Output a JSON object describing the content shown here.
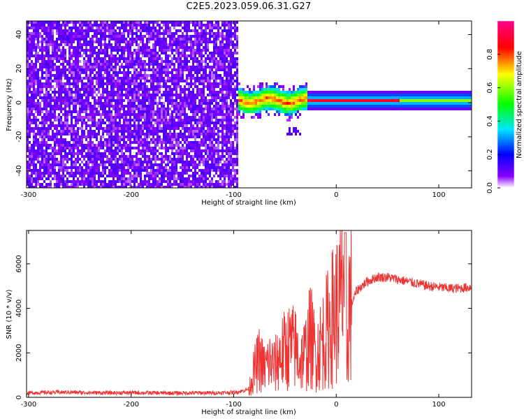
{
  "figure_title": "C2E5.2023.059.06.31.G27",
  "chart_data": [
    {
      "type": "heatmap",
      "xlabel": "Height of straight line (km)",
      "ylabel": "Frequency (Hz)",
      "xlim": [
        -302,
        132
      ],
      "ylim": [
        -50,
        48
      ],
      "xticks": [
        -300,
        -200,
        -100,
        0,
        100
      ],
      "xtick_labels": [
        "-300",
        "-200",
        "-100",
        "0",
        "100"
      ],
      "yticks": [
        -40,
        -20,
        0,
        20,
        40
      ],
      "ytick_labels": [
        "-40",
        "-20",
        "0",
        "20",
        "40"
      ],
      "colorbar": {
        "label": "Normalized spectral amplitude",
        "range": [
          0,
          1
        ],
        "ticks": [
          0,
          0.2,
          0.4,
          0.6,
          0.8
        ],
        "tick_labels": [
          "0.0",
          "0.2",
          "0.4",
          "0.6",
          "0.8"
        ],
        "colormap": [
          "#ffffff",
          "#6600ff",
          "#0000ff",
          "#00ffff",
          "#00ff00",
          "#ffff00",
          "#ff0000",
          "#ff0080"
        ]
      },
      "regions": [
        {
          "x_range": [
            -300,
            -97
          ],
          "freq_range": [
            -50,
            48
          ],
          "amplitude_range": [
            0.0,
            0.15
          ]
        },
        {
          "x_range": [
            -97,
            -30
          ],
          "center_freq": 2,
          "halfwidth": 6,
          "amplitude_range": [
            0.2,
            0.85
          ]
        },
        {
          "x_range": [
            -30,
            130
          ],
          "center_freq": 2,
          "halfwidth": 4,
          "peak_amplitude": 0.9
        }
      ]
    },
    {
      "type": "line",
      "xlabel": "Height of straight line (km)",
      "ylabel": "SNR (10 * v/v)",
      "xlim": [
        -302,
        132
      ],
      "ylim": [
        0,
        7500
      ],
      "xticks": [
        -300,
        -200,
        -100,
        0,
        100
      ],
      "xtick_labels": [
        "-300",
        "-200",
        "-100",
        "0",
        "100"
      ],
      "yticks": [
        0,
        2000,
        4000,
        6000
      ],
      "ytick_labels": [
        "0",
        "2000",
        "4000",
        "6000"
      ],
      "color": "#ee3333",
      "series": [
        {
          "x": [
            -302,
            -280,
            -260,
            -240,
            -220,
            -200,
            -180,
            -160,
            -140,
            -120,
            -100,
            -90,
            -85,
            -80,
            -75,
            -70,
            -65,
            -60,
            -55,
            -50,
            -45,
            -40,
            -35,
            -30,
            -25,
            -20,
            -15,
            -10,
            -5,
            0,
            5,
            8,
            10,
            12,
            15,
            20,
            30,
            40,
            50,
            60,
            70,
            80,
            90,
            100,
            110,
            120,
            130
          ],
          "y": [
            200,
            220,
            230,
            210,
            200,
            210,
            200,
            190,
            200,
            200,
            220,
            300,
            400,
            1200,
            1700,
            1300,
            1600,
            1400,
            1900,
            2100,
            2300,
            2200,
            1600,
            2000,
            2800,
            1900,
            2400,
            2900,
            3500,
            3900,
            4300,
            6200,
            700,
            4300,
            4200,
            4800,
            5200,
            5400,
            5400,
            5300,
            5200,
            5100,
            5000,
            4950,
            4900,
            4900,
            4950
          ]
        }
      ]
    }
  ]
}
